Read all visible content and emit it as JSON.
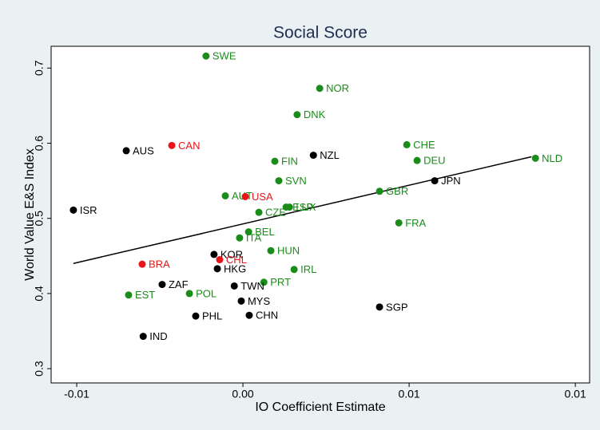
{
  "chart_data": {
    "type": "scatter",
    "title": "Social Score",
    "x_label": "IO Coefficient Estimate",
    "y_label": "World Value E&S Index",
    "xlim": [
      -0.00577,
      0.01043
    ],
    "ylim": [
      0.281,
      0.729
    ],
    "xticks": [
      {
        "value": -0.005,
        "label": "-0.01"
      },
      {
        "value": 0,
        "label": "0.00"
      },
      {
        "value": 0.005,
        "label": "0.01"
      },
      {
        "value": 0.01,
        "label": "0.01"
      }
    ],
    "yticks": [
      0.3,
      0.4,
      0.5,
      0.6,
      0.7
    ],
    "labels": [
      "SWE",
      "NOR",
      "DNK",
      "CHE",
      "AUS",
      "CAN",
      "NZL",
      "FIN",
      "DEU",
      "NLD",
      "SVN",
      "JPN",
      "GBR",
      "AUT",
      "USA",
      "ISR",
      "ESP",
      "LUX",
      "CZE",
      "FRA",
      "BEL",
      "ITA",
      "HUN",
      "KOR",
      "CHL",
      "BRA",
      "HKG",
      "IRL",
      "ZAF",
      "PRT",
      "TWN",
      "POL",
      "EST",
      "MYS",
      "SGP",
      "PHL",
      "CHN",
      "IND"
    ],
    "x": [
      -0.00111,
      0.00231,
      0.00163,
      0.00493,
      -0.00351,
      -0.00214,
      0.00212,
      0.00096,
      0.00524,
      0.0088,
      0.00108,
      0.00577,
      0.00411,
      -0.00053,
      7e-05,
      -0.0051,
      0.0013,
      0.0014,
      0.00048,
      0.00469,
      0.00017,
      -0.0001,
      0.00084,
      -0.00087,
      -0.0007,
      -0.00303,
      -0.00077,
      0.00154,
      -0.00243,
      0.00063,
      -0.00026,
      -0.00161,
      -0.00344,
      -5e-05,
      0.00411,
      -0.00142,
      0.00019,
      -0.003
    ],
    "values": [
      0.716,
      0.673,
      0.638,
      0.598,
      0.59,
      0.597,
      0.584,
      0.576,
      0.577,
      0.58,
      0.55,
      0.55,
      0.536,
      0.53,
      0.529,
      0.511,
      0.515,
      0.515,
      0.508,
      0.494,
      0.482,
      0.474,
      0.457,
      0.452,
      0.445,
      0.439,
      0.433,
      0.432,
      0.412,
      0.415,
      0.41,
      0.4,
      0.398,
      0.39,
      0.382,
      0.37,
      0.371,
      0.343
    ],
    "colors": [
      "#1a8c1a",
      "#1a8c1a",
      "#1a8c1a",
      "#1a8c1a",
      "#000000",
      "#e8141a",
      "#000000",
      "#1a8c1a",
      "#1a8c1a",
      "#1a8c1a",
      "#1a8c1a",
      "#000000",
      "#1a8c1a",
      "#1a8c1a",
      "#e8141a",
      "#000000",
      "#1a8c1a",
      "#1a8c1a",
      "#1a8c1a",
      "#1a8c1a",
      "#1a8c1a",
      "#1a8c1a",
      "#1a8c1a",
      "#000000",
      "#e8141a",
      "#e8141a",
      "#000000",
      "#1a8c1a",
      "#000000",
      "#1a8c1a",
      "#000000",
      "#1a8c1a",
      "#1a8c1a",
      "#000000",
      "#000000",
      "#000000",
      "#000000",
      "#000000"
    ],
    "fit": {
      "x": [
        -0.0051,
        0.00868
      ],
      "values": [
        0.44,
        0.582
      ],
      "color": "#000000"
    }
  }
}
